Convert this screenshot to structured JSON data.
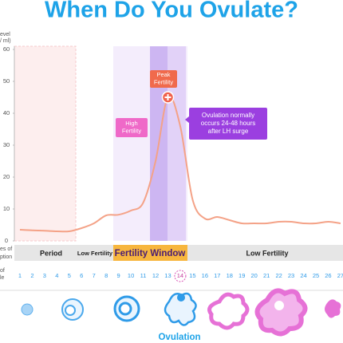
{
  "chart_data": {
    "type": "line",
    "title": "When Do You Ovulate?",
    "y_label": [
      "evel",
      "/ ml)"
    ],
    "x_label": [
      "es of",
      "ption",
      "of",
      "le"
    ],
    "x": [
      1,
      2,
      3,
      4,
      5,
      6,
      7,
      8,
      9,
      10,
      11,
      12,
      13,
      14,
      15,
      16,
      17,
      18,
      19,
      20,
      21,
      22,
      23,
      24,
      25,
      26,
      27
    ],
    "series": [
      {
        "color": "#f4a287",
        "values": [
          3.5,
          3.3,
          3.2,
          3,
          3,
          4,
          5.5,
          8,
          8.2,
          9.5,
          12,
          25,
          45,
          36,
          13,
          7,
          7.5,
          6.5,
          5.5,
          5.5,
          5.5,
          6,
          6,
          5.5,
          5.5,
          6,
          5.5
        ]
      }
    ],
    "xlim": [
      0.55,
      27.2
    ],
    "ylim": [
      0,
      60
    ],
    "yticks": [
      0,
      10,
      20,
      30,
      40,
      50,
      60
    ],
    "xticks": [
      1,
      2,
      3,
      4,
      5,
      6,
      7,
      8,
      9,
      10,
      11,
      12,
      13,
      14,
      15,
      16,
      17,
      18,
      19,
      20,
      21,
      22,
      23,
      24,
      25,
      26,
      27
    ],
    "highlight_day": 14,
    "phases": [
      "Period",
      "Low Fertility",
      "Fertility Window",
      "Low Fertility"
    ],
    "annotations": {
      "peak": [
        "Peak",
        "Fertility"
      ],
      "high": [
        "High",
        "Fertility"
      ],
      "ovulation_note": [
        "Ovulation normally",
        "occurs 24-48 hours",
        "after LH surge"
      ],
      "ovulation": "Ovulation"
    }
  }
}
